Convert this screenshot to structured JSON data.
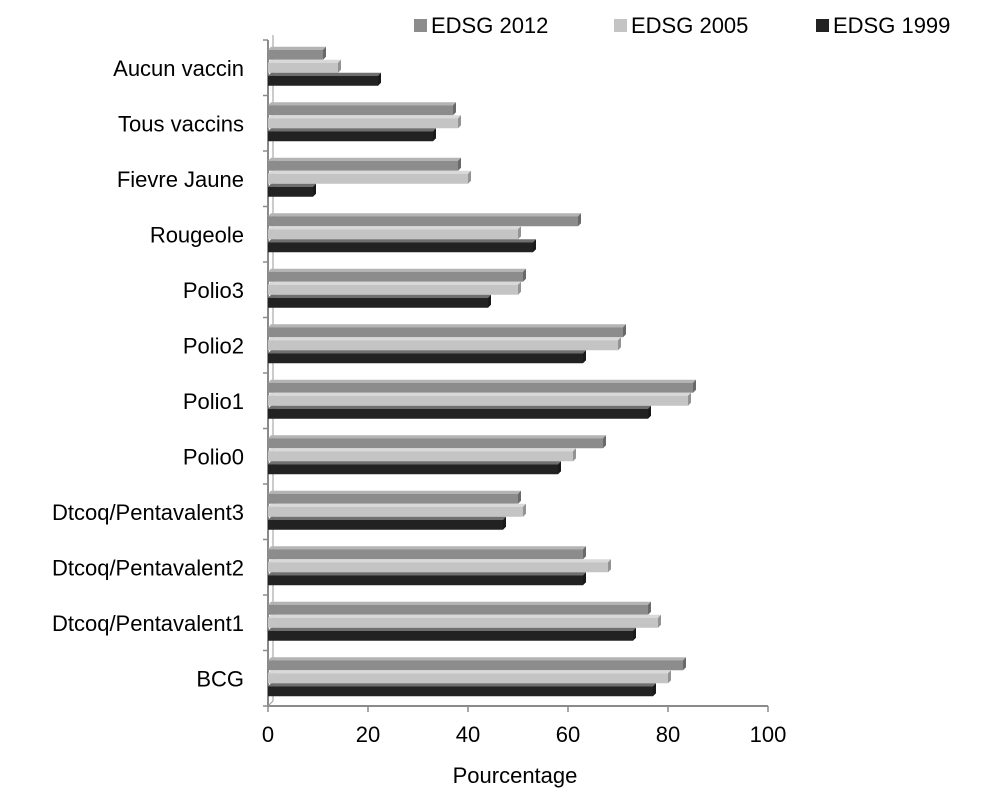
{
  "chart_data": {
    "type": "bar",
    "orientation": "horizontal",
    "title": "",
    "xlabel": "Pourcentage",
    "ylabel": "",
    "xlim": [
      0,
      100
    ],
    "xticks": [
      0,
      20,
      40,
      60,
      80,
      100
    ],
    "grid": false,
    "legend_position": "top-right",
    "categories": [
      "Aucun vaccin",
      "Tous vaccins",
      "Fievre Jaune",
      "Rougeole",
      "Polio3",
      "Polio2",
      "Polio1",
      "Polio0",
      "Dtcoq/Pentavalent3",
      "Dtcoq/Pentavalent2",
      "Dtcoq/Pentavalent1",
      "BCG"
    ],
    "series": [
      {
        "name": "EDSG 2012",
        "color": "#8c8c8c",
        "values": [
          11,
          37,
          38,
          62,
          51,
          71,
          85,
          67,
          50,
          63,
          76,
          83
        ]
      },
      {
        "name": "EDSG 2005",
        "color": "#c4c4c4",
        "values": [
          14,
          38,
          40,
          50,
          50,
          70,
          84,
          61,
          51,
          68,
          78,
          80
        ]
      },
      {
        "name": "EDSG 1999",
        "color": "#222222",
        "values": [
          22,
          33,
          9,
          53,
          44,
          63,
          76,
          58,
          47,
          63,
          73,
          77
        ]
      }
    ]
  }
}
